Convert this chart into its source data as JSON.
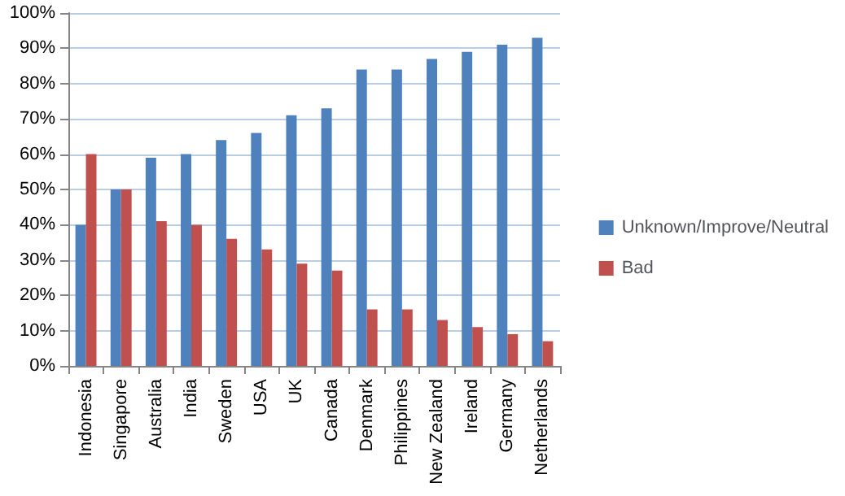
{
  "chart_data": {
    "type": "bar",
    "categories": [
      "Indonesia",
      "Singapore",
      "Australia",
      "India",
      "Sweden",
      "USA",
      "UK",
      "Canada",
      "Denmark",
      "Philippines",
      "New Zealand",
      "Ireland",
      "Germany",
      "Netherlands"
    ],
    "series": [
      {
        "name": "Unknown/Improve/Neutral",
        "color": "#4f81bd",
        "values": [
          40,
          50,
          59,
          60,
          64,
          66,
          71,
          73,
          84,
          84,
          87,
          89,
          91,
          93
        ]
      },
      {
        "name": "Bad",
        "color": "#c0504d",
        "values": [
          60,
          50,
          41,
          40,
          36,
          33,
          29,
          27,
          16,
          16,
          13,
          11,
          9,
          7
        ]
      }
    ],
    "ylim": [
      0,
      100
    ],
    "yticks": [
      {
        "value": 0,
        "label": "0%"
      },
      {
        "value": 10,
        "label": "10%"
      },
      {
        "value": 20,
        "label": "20%"
      },
      {
        "value": 30,
        "label": "30%"
      },
      {
        "value": 40,
        "label": "40%"
      },
      {
        "value": 50,
        "label": "50%"
      },
      {
        "value": 60,
        "label": "60%"
      },
      {
        "value": 70,
        "label": "70%"
      },
      {
        "value": 80,
        "label": "80%"
      },
      {
        "value": 90,
        "label": "90%"
      },
      {
        "value": 100,
        "label": "100%"
      }
    ],
    "grid": "y",
    "legend": "right"
  }
}
